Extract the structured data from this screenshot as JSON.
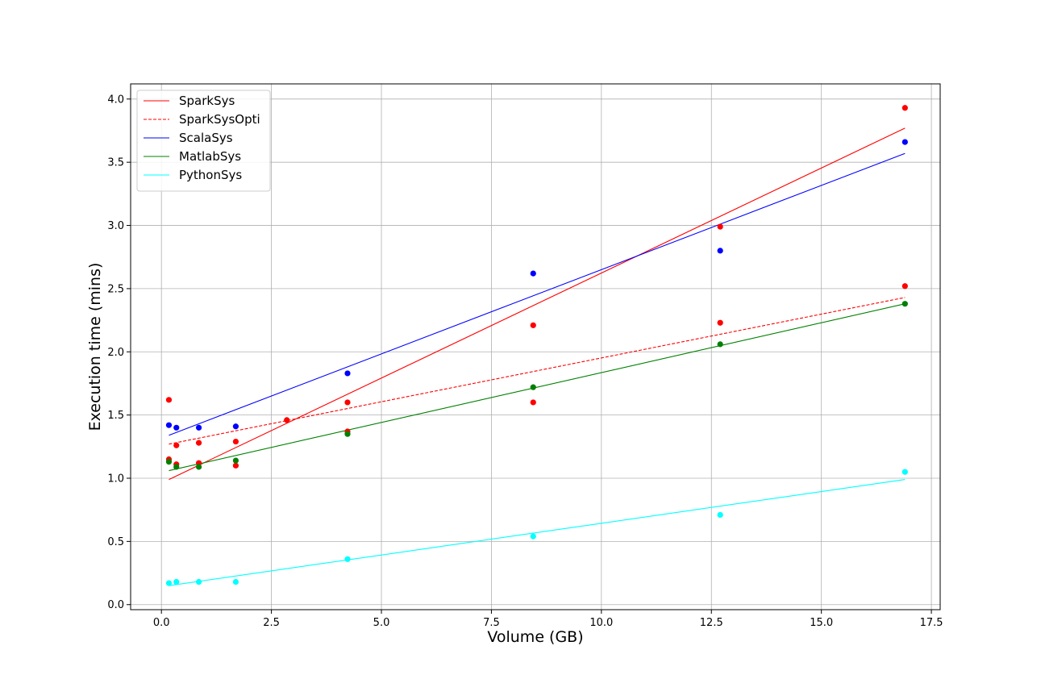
{
  "chart_data": {
    "type": "scatter",
    "title": "",
    "xlabel": "Volume (GB)",
    "ylabel": "Execution time (mins)",
    "xlim": [
      -0.7,
      17.7
    ],
    "ylim": [
      -0.04,
      4.12
    ],
    "xticks": [
      0.0,
      2.5,
      5.0,
      7.5,
      10.0,
      12.5,
      15.0,
      17.5
    ],
    "xtick_labels": [
      "0.0",
      "2.5",
      "5.0",
      "7.5",
      "10.0",
      "12.5",
      "15.0",
      "17.5"
    ],
    "yticks": [
      0.0,
      0.5,
      1.0,
      1.5,
      2.0,
      2.5,
      3.0,
      3.5,
      4.0
    ],
    "ytick_labels": [
      "0.0",
      "0.5",
      "1.0",
      "1.5",
      "2.0",
      "2.5",
      "3.0",
      "3.5",
      "4.0"
    ],
    "grid": true,
    "legend_position": "top-left",
    "series": [
      {
        "name": "SparkSys",
        "color": "#ff0000",
        "line_style": "solid",
        "fit_line": {
          "x": [
            0.17,
            16.9
          ],
          "y": [
            0.99,
            3.77
          ]
        },
        "points": [
          {
            "x": 0.17,
            "y": 1.62
          },
          {
            "x": 0.34,
            "y": 1.26
          },
          {
            "x": 0.85,
            "y": 1.28
          },
          {
            "x": 1.69,
            "y": 1.29
          },
          {
            "x": 2.85,
            "y": 1.46
          },
          {
            "x": 4.23,
            "y": 1.6
          },
          {
            "x": 8.45,
            "y": 2.21
          },
          {
            "x": 12.7,
            "y": 2.99
          },
          {
            "x": 16.9,
            "y": 3.93
          }
        ]
      },
      {
        "name": "SparkSysOpti",
        "color": "#ff0000",
        "line_style": "dashed",
        "fit_line": {
          "x": [
            0.17,
            16.9
          ],
          "y": [
            1.27,
            2.43
          ]
        },
        "points": [
          {
            "x": 0.17,
            "y": 1.15
          },
          {
            "x": 0.34,
            "y": 1.11
          },
          {
            "x": 0.85,
            "y": 1.12
          },
          {
            "x": 1.69,
            "y": 1.1
          },
          {
            "x": 4.23,
            "y": 1.37
          },
          {
            "x": 8.45,
            "y": 1.6
          },
          {
            "x": 12.7,
            "y": 2.23
          },
          {
            "x": 16.9,
            "y": 2.52
          }
        ]
      },
      {
        "name": "ScalaSys",
        "color": "#0000ff",
        "line_style": "solid",
        "fit_line": {
          "x": [
            0.17,
            16.9
          ],
          "y": [
            1.34,
            3.57
          ]
        },
        "points": [
          {
            "x": 0.17,
            "y": 1.42
          },
          {
            "x": 0.34,
            "y": 1.4
          },
          {
            "x": 0.85,
            "y": 1.4
          },
          {
            "x": 1.69,
            "y": 1.41
          },
          {
            "x": 4.23,
            "y": 1.83
          },
          {
            "x": 8.45,
            "y": 2.62
          },
          {
            "x": 12.7,
            "y": 2.8
          },
          {
            "x": 16.9,
            "y": 3.66
          }
        ]
      },
      {
        "name": "MatlabSys",
        "color": "#008000",
        "line_style": "solid",
        "fit_line": {
          "x": [
            0.17,
            16.9
          ],
          "y": [
            1.06,
            2.38
          ]
        },
        "points": [
          {
            "x": 0.17,
            "y": 1.13
          },
          {
            "x": 0.34,
            "y": 1.09
          },
          {
            "x": 0.85,
            "y": 1.09
          },
          {
            "x": 1.69,
            "y": 1.14
          },
          {
            "x": 4.23,
            "y": 1.35
          },
          {
            "x": 8.45,
            "y": 1.72
          },
          {
            "x": 12.7,
            "y": 2.06
          },
          {
            "x": 16.9,
            "y": 2.38
          }
        ]
      },
      {
        "name": "PythonSys",
        "color": "#00ffff",
        "line_style": "solid",
        "fit_line": {
          "x": [
            0.17,
            16.9
          ],
          "y": [
            0.15,
            0.99
          ]
        },
        "points": [
          {
            "x": 0.17,
            "y": 0.17
          },
          {
            "x": 0.34,
            "y": 0.18
          },
          {
            "x": 0.85,
            "y": 0.18
          },
          {
            "x": 1.69,
            "y": 0.18
          },
          {
            "x": 4.23,
            "y": 0.36
          },
          {
            "x": 8.45,
            "y": 0.54
          },
          {
            "x": 12.7,
            "y": 0.71
          },
          {
            "x": 16.9,
            "y": 1.05
          }
        ]
      }
    ]
  }
}
